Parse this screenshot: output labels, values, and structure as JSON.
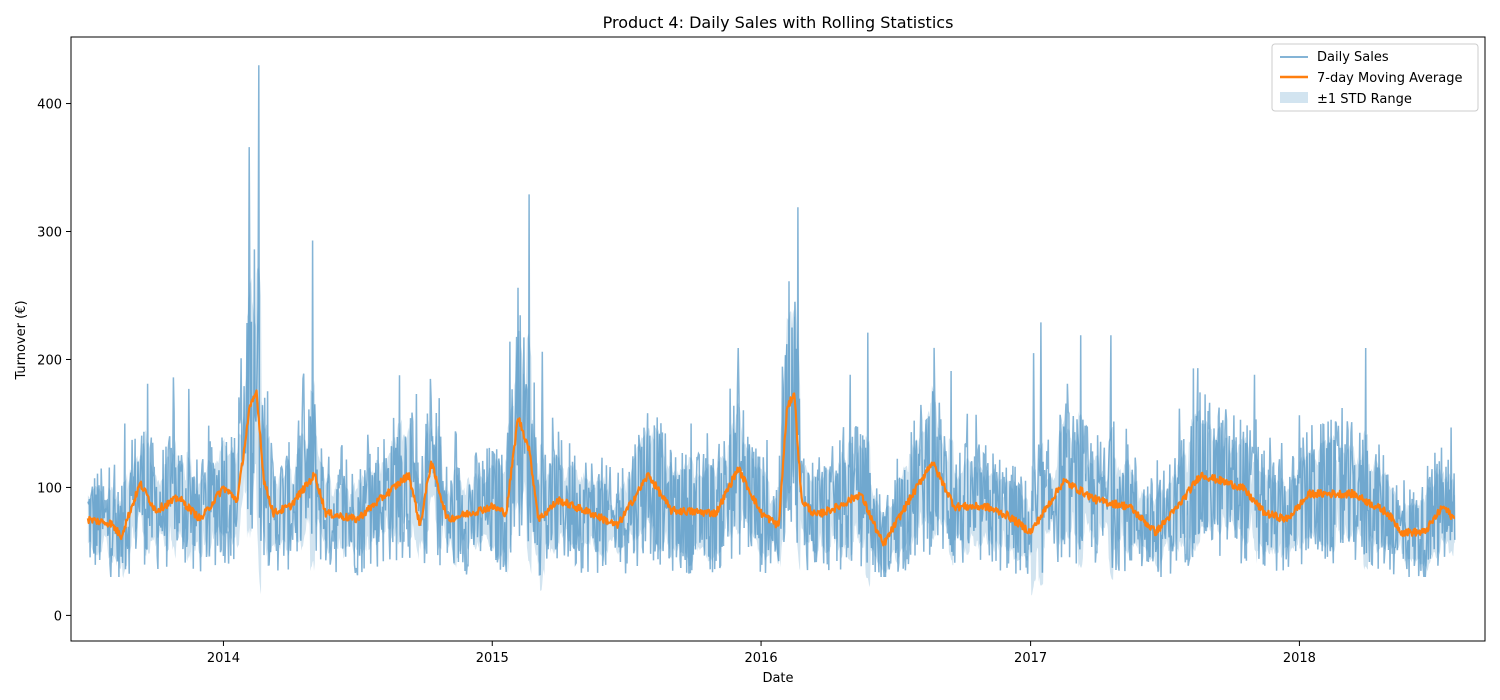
{
  "chart_data": {
    "type": "line",
    "title": "Product 4: Daily Sales with Rolling Statistics",
    "xlabel": "Date",
    "ylabel": "Turnover (€)",
    "x_range": [
      "2013-06-08",
      "2018-09-10"
    ],
    "x_ticks": [
      "2014-01-01",
      "2015-01-01",
      "2016-01-01",
      "2017-01-01",
      "2018-01-01"
    ],
    "x_tick_labels": [
      "2014",
      "2015",
      "2016",
      "2017",
      "2018"
    ],
    "ylim": [
      -20,
      452
    ],
    "y_ticks": [
      0,
      100,
      200,
      300,
      400
    ],
    "y_tick_labels": [
      "0",
      "100",
      "200",
      "300",
      "400"
    ],
    "grid": false,
    "legend": {
      "position": "top-right",
      "entries": [
        "Daily Sales",
        "7-day Moving Average",
        "±1 STD Range"
      ]
    },
    "date_start": "2013-07-01",
    "date_end": "2018-07-31",
    "colors": {
      "daily": "#1f77b4",
      "moving_average": "#ff7f0e",
      "std_band": "#1f77b4"
    },
    "series": [
      {
        "name": "7-day Moving Average",
        "points": [
          [
            "2013-07-01",
            75
          ],
          [
            "2013-08-01",
            72
          ],
          [
            "2013-08-15",
            62
          ],
          [
            "2013-09-10",
            103
          ],
          [
            "2013-10-01",
            82
          ],
          [
            "2013-11-01",
            92
          ],
          [
            "2013-12-01",
            75
          ],
          [
            "2014-01-01",
            100
          ],
          [
            "2014-01-20",
            90
          ],
          [
            "2014-02-05",
            160
          ],
          [
            "2014-02-15",
            175
          ],
          [
            "2014-02-25",
            105
          ],
          [
            "2014-03-10",
            80
          ],
          [
            "2014-04-01",
            85
          ],
          [
            "2014-05-05",
            110
          ],
          [
            "2014-05-20",
            80
          ],
          [
            "2014-07-01",
            75
          ],
          [
            "2014-09-10",
            110
          ],
          [
            "2014-09-25",
            70
          ],
          [
            "2014-10-10",
            120
          ],
          [
            "2014-11-01",
            75
          ],
          [
            "2015-01-01",
            85
          ],
          [
            "2015-01-20",
            80
          ],
          [
            "2015-02-05",
            155
          ],
          [
            "2015-02-20",
            130
          ],
          [
            "2015-03-05",
            75
          ],
          [
            "2015-04-01",
            90
          ],
          [
            "2015-05-15",
            80
          ],
          [
            "2015-06-20",
            70
          ],
          [
            "2015-08-01",
            110
          ],
          [
            "2015-09-01",
            82
          ],
          [
            "2015-11-01",
            80
          ],
          [
            "2015-12-01",
            115
          ],
          [
            "2016-01-01",
            80
          ],
          [
            "2016-01-25",
            70
          ],
          [
            "2016-02-05",
            160
          ],
          [
            "2016-02-15",
            175
          ],
          [
            "2016-02-25",
            90
          ],
          [
            "2016-03-15",
            78
          ],
          [
            "2016-04-15",
            85
          ],
          [
            "2016-05-15",
            95
          ],
          [
            "2016-06-15",
            55
          ],
          [
            "2016-07-15",
            85
          ],
          [
            "2016-08-20",
            120
          ],
          [
            "2016-09-20",
            85
          ],
          [
            "2016-11-01",
            85
          ],
          [
            "2016-12-01",
            78
          ],
          [
            "2017-01-01",
            65
          ],
          [
            "2017-02-15",
            105
          ],
          [
            "2017-04-01",
            90
          ],
          [
            "2017-05-15",
            85
          ],
          [
            "2017-06-20",
            65
          ],
          [
            "2017-07-20",
            85
          ],
          [
            "2017-08-20",
            110
          ],
          [
            "2017-10-15",
            100
          ],
          [
            "2017-11-15",
            80
          ],
          [
            "2017-12-15",
            75
          ],
          [
            "2018-01-15",
            95
          ],
          [
            "2018-03-15",
            95
          ],
          [
            "2018-05-01",
            80
          ],
          [
            "2018-05-20",
            65
          ],
          [
            "2018-06-20",
            65
          ],
          [
            "2018-07-15",
            85
          ],
          [
            "2018-07-31",
            75
          ]
        ]
      },
      {
        "name": "Daily Sales",
        "peaks": [
          [
            "2013-08-20",
            150
          ],
          [
            "2013-09-20",
            181
          ],
          [
            "2013-10-25",
            186
          ],
          [
            "2013-11-15",
            177
          ],
          [
            "2014-01-25",
            201
          ],
          [
            "2014-02-05",
            366
          ],
          [
            "2014-02-12",
            286
          ],
          [
            "2014-02-18",
            430
          ],
          [
            "2014-05-02",
            293
          ],
          [
            "2014-04-20",
            189
          ],
          [
            "2014-09-20",
            173
          ],
          [
            "2014-10-10",
            169
          ],
          [
            "2015-01-25",
            214
          ],
          [
            "2015-02-05",
            256
          ],
          [
            "2015-02-20",
            329
          ],
          [
            "2015-03-10",
            206
          ],
          [
            "2015-12-01",
            209
          ],
          [
            "2016-02-05",
            212
          ],
          [
            "2016-02-12",
            225
          ],
          [
            "2016-02-20",
            319
          ],
          [
            "2016-05-01",
            188
          ],
          [
            "2016-05-25",
            221
          ],
          [
            "2016-09-15",
            191
          ],
          [
            "2017-01-05",
            205
          ],
          [
            "2017-01-15",
            229
          ],
          [
            "2017-03-10",
            219
          ],
          [
            "2017-04-20",
            219
          ],
          [
            "2017-08-10",
            193
          ],
          [
            "2017-11-01",
            188
          ],
          [
            "2018-04-01",
            209
          ]
        ]
      },
      {
        "name": "±1 STD Range"
      }
    ]
  }
}
